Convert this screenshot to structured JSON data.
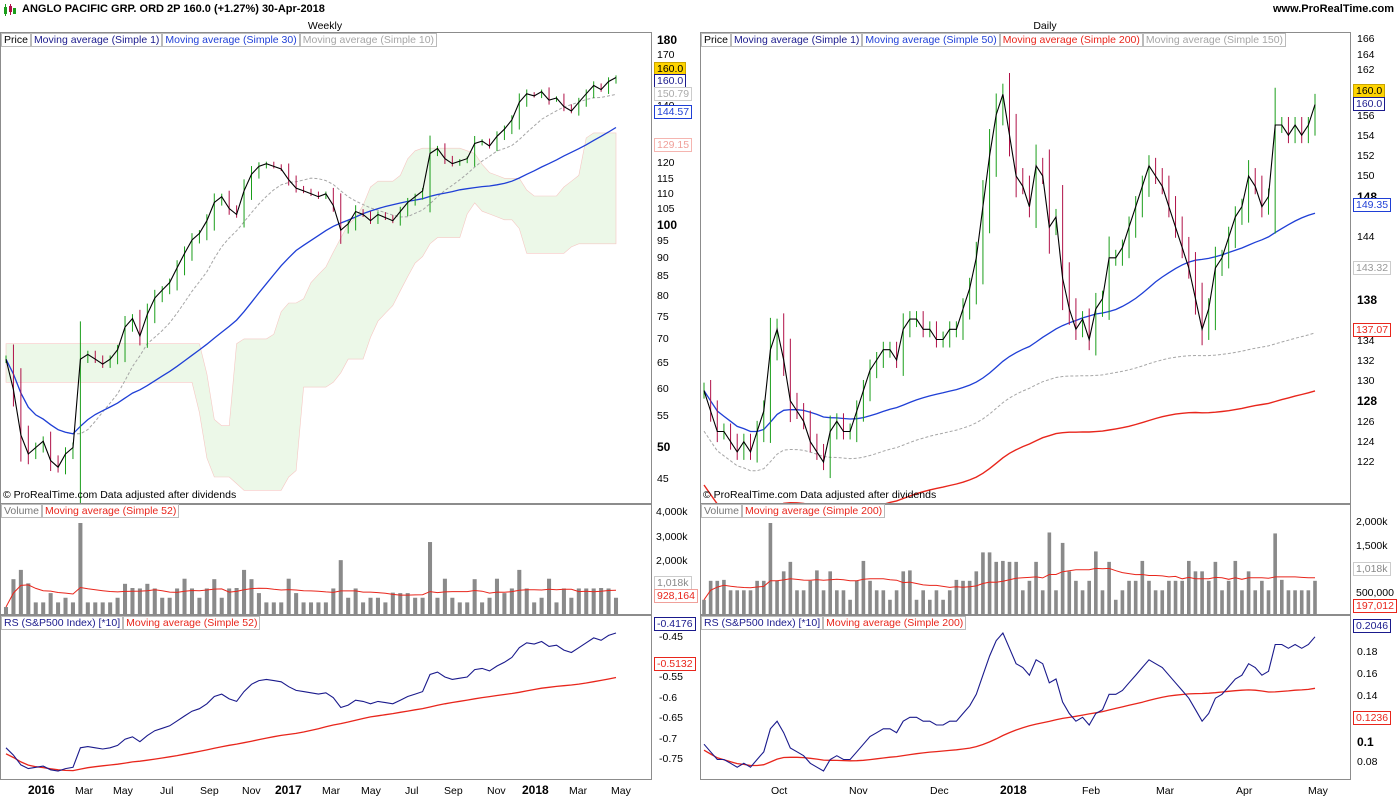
{
  "header": {
    "title": "ANGLO PACIFIC GRP. ORD 2P   160.0 (+1.27%)   30-Apr-2018",
    "site": "www.ProRealTime.com"
  },
  "copyright": "© ProRealTime.com  Data adjusted after dividends",
  "colors": {
    "ma_blue": "#1f3fd6",
    "ma_red": "#e8261c",
    "ma_gray": "#a6a6a6",
    "up": "#1a9e1a",
    "down": "#b01047",
    "rs": "#1a1a8c"
  },
  "weekly": {
    "title": "Weekly",
    "legend": [
      "Price",
      "Moving average (Simple 1)",
      "Moving average (Simple 30)",
      "Moving average (Simple 10)"
    ],
    "y_ticks": [
      "180",
      "170",
      "160",
      "150",
      "140",
      "130",
      "120",
      "115",
      "110",
      "105",
      "100",
      "95",
      "90",
      "85",
      "80",
      "75",
      "70",
      "65",
      "60",
      "55",
      "50",
      "45"
    ],
    "tags": {
      "price": "160.0",
      "ma1": "160.0",
      "ma10": "150.79",
      "ma30": "144.57",
      "cloud": "129.15"
    },
    "volume_legend": [
      "Volume",
      "Moving average (Simple 52)"
    ],
    "volume_ticks": [
      "4,000k",
      "3,000k",
      "2,000k",
      "1,000k"
    ],
    "volume_tags": {
      "vol": "1,018k",
      "ma": "928,164"
    },
    "rs_legend": [
      "RS (S&P500 Index) [*10]",
      "Moving average (Simple 52)"
    ],
    "rs_ticks": [
      "-0.45",
      "-0.5",
      "-0.55",
      "-0.6",
      "-0.65",
      "-0.7",
      "-0.75"
    ],
    "rs_tags": {
      "rs": "-0.4176",
      "ma": "-0.5132"
    },
    "x_labels": [
      {
        "t": "2016",
        "big": true
      },
      {
        "t": "Mar"
      },
      {
        "t": "May"
      },
      {
        "t": "Jul"
      },
      {
        "t": "Sep"
      },
      {
        "t": "Nov"
      },
      {
        "t": "2017",
        "big": true
      },
      {
        "t": "Mar"
      },
      {
        "t": "May"
      },
      {
        "t": "Jul"
      },
      {
        "t": "Sep"
      },
      {
        "t": "Nov"
      },
      {
        "t": "2018",
        "big": true
      },
      {
        "t": "Mar"
      },
      {
        "t": "May"
      }
    ]
  },
  "daily": {
    "title": "Daily",
    "legend": [
      "Price",
      "Moving average (Simple 1)",
      "Moving average (Simple 50)",
      "Moving average (Simple 200)",
      "Moving average (Simple 150)"
    ],
    "y_ticks": [
      "166",
      "164",
      "162",
      "160",
      "158",
      "156",
      "154",
      "152",
      "150",
      "148",
      "146",
      "144",
      "142",
      "140",
      "138",
      "136",
      "134",
      "132",
      "130",
      "128",
      "126",
      "124",
      "122"
    ],
    "tags": {
      "price": "160.0",
      "ma1": "160.0",
      "ma50": "149.35",
      "ma150": "143.32",
      "ma200": "137.07"
    },
    "volume_legend": [
      "Volume",
      "Moving average (Simple 200)"
    ],
    "volume_ticks": [
      "2,000k",
      "1,500k",
      "1,000k",
      "500,000"
    ],
    "volume_tags": {
      "vol": "1,018k",
      "ma": "197,012"
    },
    "rs_legend": [
      "RS (S&P500 Index) [*10]",
      "Moving average (Simple 200)"
    ],
    "rs_ticks": [
      "0.18",
      "0.16",
      "0.14",
      "0.12",
      "0.1",
      "0.08"
    ],
    "rs_tags": {
      "rs": "0.2046",
      "ma": "0.1236"
    },
    "x_labels": [
      {
        "t": "Oct"
      },
      {
        "t": "Nov"
      },
      {
        "t": "Dec"
      },
      {
        "t": "2018",
        "big": true
      },
      {
        "t": "Feb"
      },
      {
        "t": "Mar"
      },
      {
        "t": "Apr"
      },
      {
        "t": "May"
      }
    ]
  },
  "chart_data": [
    {
      "type": "ohlc",
      "title": "Weekly",
      "ylim": [
        42,
        184
      ],
      "y_scale": "log",
      "closes": [
        66,
        60,
        52,
        49,
        50,
        51,
        48,
        47,
        49,
        50,
        66,
        67,
        66,
        65,
        66,
        68,
        73,
        75,
        71,
        76,
        80,
        82,
        84,
        88,
        92,
        96,
        98,
        102,
        108,
        110,
        106,
        104,
        112,
        118,
        121,
        122,
        121,
        120,
        116,
        113,
        112,
        111,
        110,
        111,
        107,
        99,
        101,
        105,
        104,
        102,
        104,
        103,
        102,
        105,
        108,
        110,
        112,
        126,
        128,
        124,
        122,
        123,
        124,
        130,
        131,
        129,
        133,
        136,
        140,
        148,
        152,
        151,
        153,
        149,
        150,
        146,
        144,
        148,
        152,
        156,
        154,
        158,
        160
      ]
    },
    {
      "type": "ohlc",
      "title": "Daily",
      "ylim": [
        121,
        167
      ],
      "closes": [
        132,
        130,
        128,
        128,
        127,
        126,
        127,
        126,
        128,
        130,
        136,
        138,
        135,
        131,
        130,
        129,
        127,
        126,
        125,
        128,
        129,
        128,
        128,
        130,
        132,
        134,
        135,
        136,
        136,
        135,
        138,
        139,
        139,
        138,
        138,
        137,
        137,
        138,
        138,
        140,
        142,
        145,
        150,
        155,
        159,
        161,
        157,
        153,
        152,
        150,
        154,
        153,
        148,
        149,
        143,
        140,
        138,
        139,
        137,
        140,
        141,
        145,
        145,
        146,
        148,
        150,
        152,
        154,
        153,
        152,
        150,
        148,
        146,
        144,
        141,
        138,
        140,
        144,
        145,
        147,
        149,
        150,
        153,
        152,
        150,
        151,
        158,
        158,
        157,
        158,
        157,
        158,
        160
      ]
    }
  ]
}
